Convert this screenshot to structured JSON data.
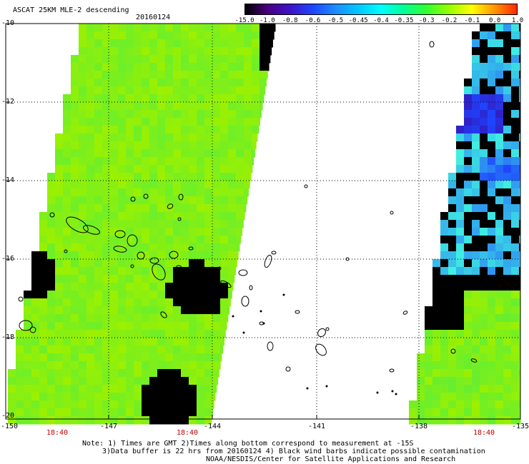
{
  "title": "ASCAT 25KM MLE-2 descending",
  "date": "20160124",
  "colorbar": {
    "labels": [
      "-15.0",
      "-1.0",
      "-0.8",
      "-0.6",
      "-0.5",
      "-0.45",
      "-0.4",
      "-0.35",
      "-0.3",
      "-0.2",
      "-0.1",
      "0.0",
      "1.0"
    ],
    "colors": [
      "#000000",
      "#4b0082",
      "#3c14c8",
      "#1e46ff",
      "#1e8cff",
      "#00c8ff",
      "#00ffff",
      "#00ff96",
      "#32ff32",
      "#96ff00",
      "#ffff00",
      "#ff9600",
      "#ff2800"
    ]
  },
  "axes": {
    "lat_labels": [
      "-10",
      "-12",
      "-14",
      "-16",
      "-18",
      "-20"
    ],
    "lon_labels": [
      "-150",
      "-147",
      "-144",
      "-141",
      "-138",
      "-135"
    ],
    "time_labels": [
      "18:40",
      "18:40",
      "18:40"
    ]
  },
  "notes": {
    "line1": "Note: 1) Times are GMT 2)Times along bottom correspond to measurement at -15S",
    "line2": "3)Data buffer is 22 hrs from 20160124 4) Black wind barbs indicate possible contamination",
    "line3": "NOAA/NESDIS/Center for Satellite Applications and Research"
  },
  "map_data": {
    "lat_range": [
      -20,
      -10
    ],
    "lon_range": [
      -150,
      -135
    ],
    "swath_colors": {
      "base": "#9cf000",
      "green": "#5aee3a",
      "cyan": "#40f0e0",
      "blue": "#1e46ff",
      "deep": "#3020c8"
    }
  }
}
